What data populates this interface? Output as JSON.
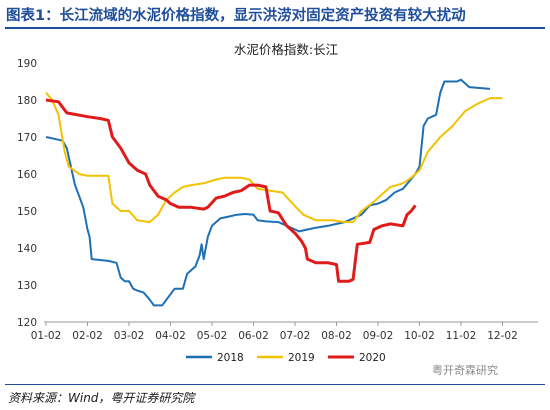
{
  "header": {
    "title": "图表1：长江流域的水泥价格指数，显示洪涝对固定资产投资有较大扰动"
  },
  "source": "资料来源：Wind，粤开证券研究院",
  "watermark": "粤开奇霖研究",
  "chart_data": {
    "type": "line",
    "title": "水泥价格指数:长江",
    "xlabel": "",
    "ylabel": "",
    "x_ticks": [
      "01-02",
      "02-02",
      "03-02",
      "04-02",
      "05-02",
      "06-02",
      "07-02",
      "08-02",
      "09-02",
      "10-02",
      "11-02",
      "12-02"
    ],
    "ylim": [
      120,
      190
    ],
    "y_ticks": [
      120,
      130,
      140,
      150,
      160,
      170,
      180,
      190
    ],
    "grid": false,
    "legend_position": "bottom",
    "series": [
      {
        "name": "2018",
        "color": "#1f6fb5",
        "points": [
          [
            0,
            170
          ],
          [
            0.2,
            169.5
          ],
          [
            0.4,
            169
          ],
          [
            0.5,
            167
          ],
          [
            0.6,
            162
          ],
          [
            0.7,
            157
          ],
          [
            0.8,
            154
          ],
          [
            0.9,
            151
          ],
          [
            1.0,
            145
          ],
          [
            1.05,
            143
          ],
          [
            1.1,
            137
          ],
          [
            1.5,
            136.5
          ],
          [
            1.7,
            136
          ],
          [
            1.8,
            132
          ],
          [
            1.9,
            131
          ],
          [
            2.0,
            131
          ],
          [
            2.1,
            129
          ],
          [
            2.2,
            128.5
          ],
          [
            2.35,
            128
          ],
          [
            2.5,
            126
          ],
          [
            2.6,
            124.5
          ],
          [
            2.8,
            124.5
          ],
          [
            2.9,
            126
          ],
          [
            3.1,
            129
          ],
          [
            3.3,
            129
          ],
          [
            3.4,
            133
          ],
          [
            3.6,
            135
          ],
          [
            3.7,
            138
          ],
          [
            3.75,
            141
          ],
          [
            3.8,
            137
          ],
          [
            3.9,
            143
          ],
          [
            4.0,
            146
          ],
          [
            4.2,
            148
          ],
          [
            4.4,
            148.5
          ],
          [
            4.6,
            149
          ],
          [
            4.8,
            149.2
          ],
          [
            5.0,
            149
          ],
          [
            5.1,
            147.5
          ],
          [
            5.3,
            147.2
          ],
          [
            5.6,
            147
          ],
          [
            5.9,
            145.5
          ],
          [
            6.0,
            145
          ],
          [
            6.1,
            144.5
          ],
          [
            6.3,
            145
          ],
          [
            6.5,
            145.5
          ],
          [
            6.8,
            146
          ],
          [
            7.0,
            146.5
          ],
          [
            7.2,
            147
          ],
          [
            7.4,
            148
          ],
          [
            7.6,
            149
          ],
          [
            7.8,
            151.5
          ],
          [
            8.0,
            152
          ],
          [
            8.2,
            153
          ],
          [
            8.4,
            155
          ],
          [
            8.6,
            156
          ],
          [
            8.9,
            160
          ],
          [
            9.0,
            162
          ],
          [
            9.1,
            173
          ],
          [
            9.2,
            175
          ],
          [
            9.4,
            176
          ],
          [
            9.5,
            182
          ],
          [
            9.6,
            185
          ],
          [
            9.9,
            185
          ],
          [
            10.0,
            185.5
          ],
          [
            10.2,
            183.5
          ],
          [
            10.7,
            183
          ]
        ]
      },
      {
        "name": "2019",
        "color": "#f3c200",
        "points": [
          [
            0,
            182
          ],
          [
            0.15,
            180
          ],
          [
            0.3,
            176
          ],
          [
            0.45,
            166
          ],
          [
            0.55,
            162
          ],
          [
            0.8,
            160
          ],
          [
            1.0,
            159.5
          ],
          [
            1.5,
            159.5
          ],
          [
            1.6,
            152
          ],
          [
            1.8,
            150
          ],
          [
            2.0,
            150
          ],
          [
            2.2,
            147.5
          ],
          [
            2.5,
            147
          ],
          [
            2.7,
            149
          ],
          [
            2.9,
            153
          ],
          [
            3.1,
            155
          ],
          [
            3.3,
            156.5
          ],
          [
            3.5,
            157
          ],
          [
            3.8,
            157.5
          ],
          [
            4.1,
            158.5
          ],
          [
            4.3,
            159
          ],
          [
            4.7,
            159
          ],
          [
            4.9,
            158.5
          ],
          [
            5.1,
            156
          ],
          [
            5.4,
            155.5
          ],
          [
            5.7,
            155
          ],
          [
            5.9,
            152.5
          ],
          [
            6.2,
            149
          ],
          [
            6.5,
            147.5
          ],
          [
            6.9,
            147.5
          ],
          [
            7.2,
            147
          ],
          [
            7.4,
            147
          ],
          [
            7.6,
            150
          ],
          [
            7.9,
            152.5
          ],
          [
            8.1,
            154.5
          ],
          [
            8.3,
            156.5
          ],
          [
            8.6,
            157.5
          ],
          [
            8.8,
            159
          ],
          [
            9.0,
            161
          ],
          [
            9.2,
            166
          ],
          [
            9.5,
            170
          ],
          [
            9.8,
            173
          ],
          [
            10.1,
            177
          ],
          [
            10.4,
            179
          ],
          [
            10.7,
            180.5
          ],
          [
            11.0,
            180.5
          ]
        ]
      },
      {
        "name": "2020",
        "color": "#e01b1b",
        "points": [
          [
            0,
            180
          ],
          [
            0.3,
            179.5
          ],
          [
            0.5,
            176.5
          ],
          [
            1.0,
            175.5
          ],
          [
            1.3,
            175
          ],
          [
            1.5,
            174.5
          ],
          [
            1.6,
            170
          ],
          [
            1.8,
            167
          ],
          [
            2.0,
            163
          ],
          [
            2.2,
            161
          ],
          [
            2.4,
            160
          ],
          [
            2.5,
            157
          ],
          [
            2.7,
            154
          ],
          [
            2.9,
            153
          ],
          [
            3.0,
            152
          ],
          [
            3.2,
            151
          ],
          [
            3.5,
            151
          ],
          [
            3.8,
            150.5
          ],
          [
            3.9,
            151
          ],
          [
            4.1,
            153.5
          ],
          [
            4.3,
            154
          ],
          [
            4.5,
            155
          ],
          [
            4.7,
            155.5
          ],
          [
            4.9,
            157
          ],
          [
            5.1,
            157
          ],
          [
            5.3,
            156.5
          ],
          [
            5.4,
            150
          ],
          [
            5.6,
            149.5
          ],
          [
            5.8,
            146
          ],
          [
            6.0,
            144
          ],
          [
            6.15,
            142
          ],
          [
            6.25,
            140
          ],
          [
            6.3,
            137
          ],
          [
            6.5,
            136
          ],
          [
            6.8,
            136
          ],
          [
            7.0,
            135.5
          ],
          [
            7.05,
            131
          ],
          [
            7.3,
            131
          ],
          [
            7.4,
            131.5
          ],
          [
            7.5,
            141
          ],
          [
            7.8,
            141.5
          ],
          [
            7.9,
            145
          ],
          [
            8.1,
            146
          ],
          [
            8.3,
            146.5
          ],
          [
            8.6,
            146
          ],
          [
            8.7,
            149
          ],
          [
            8.8,
            150
          ],
          [
            8.9,
            151.5
          ]
        ]
      }
    ]
  }
}
